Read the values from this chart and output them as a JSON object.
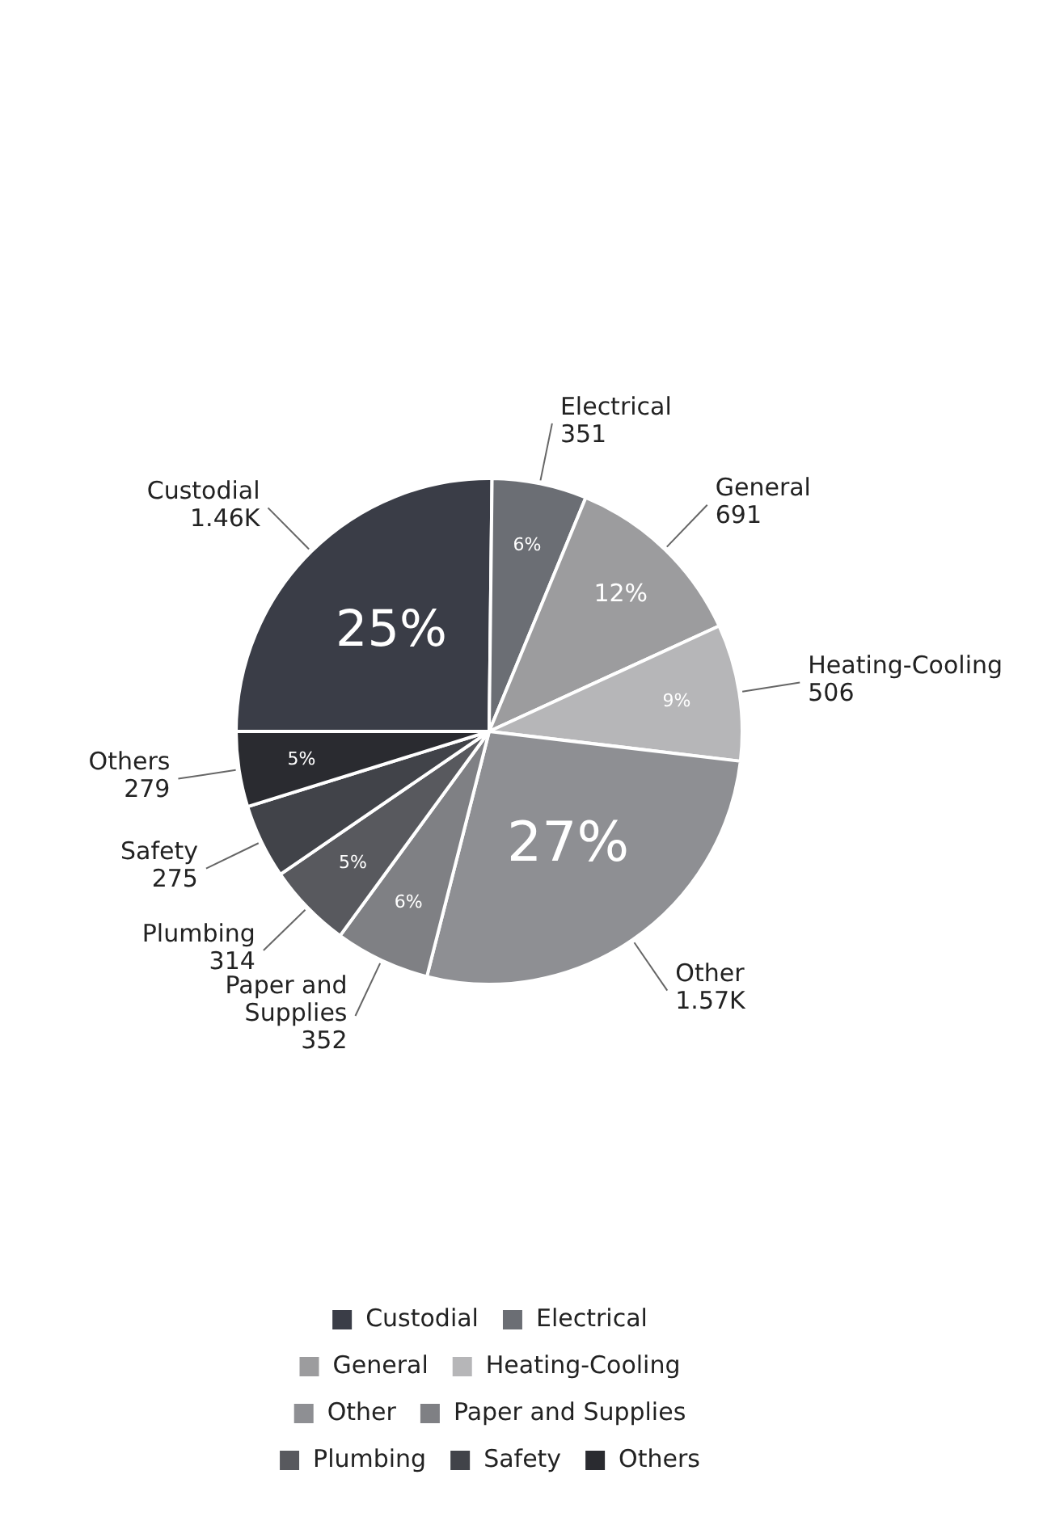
{
  "chart_data": {
    "type": "pie",
    "categories": [
      "Custodial",
      "Electrical",
      "General",
      "Heating-Cooling",
      "Other",
      "Paper and Supplies",
      "Plumbing",
      "Safety",
      "Others"
    ],
    "values": [
      1460,
      351,
      691,
      506,
      1570,
      352,
      314,
      275,
      279
    ],
    "value_labels": [
      "1.46K",
      "351",
      "691",
      "506",
      "1.57K",
      "352",
      "314",
      "275",
      "279"
    ],
    "colors": [
      "#3a3d47",
      "#6b6e74",
      "#9c9c9e",
      "#b6b6b8",
      "#8e8f93",
      "#7f8084",
      "#58595e",
      "#414349",
      "#2a2b30"
    ],
    "annotations": [
      {
        "text": "25%",
        "x": "Custodial"
      },
      {
        "text": "6%",
        "x": "Electrical"
      },
      {
        "text": "12%",
        "x": "General"
      },
      {
        "text": "9%",
        "x": "Heating-Cooling"
      },
      {
        "text": "27%",
        "x": "Other"
      },
      {
        "text": "6%",
        "x": "Paper and Supplies"
      },
      {
        "text": "5%",
        "x": "Plumbing"
      },
      {
        "text": "5%",
        "x": "Others"
      }
    ],
    "legend": "bottom"
  }
}
